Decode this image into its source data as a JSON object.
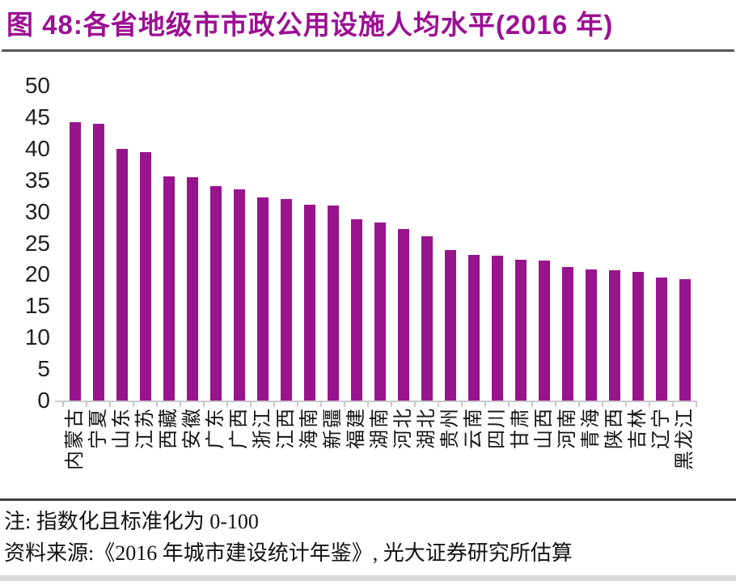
{
  "title": "图 48:各省地级市市政公用设施人均水平(2016 年)",
  "note": "注: 指数化且标准化为 0-100",
  "source": "资料来源:《2016 年城市建设统计年鉴》, 光大证券研究所估算",
  "colors": {
    "title": "#9C0F93",
    "bar": "#97148C",
    "axis": "#C9C9C9",
    "tick_text": "#212121",
    "separator_top": "#595959",
    "separator_bottom": "#3F3F3F",
    "bottom_band": "#D9D9D9"
  },
  "chart_data": {
    "type": "bar",
    "title": "图 48:各省地级市市政公用设施人均水平(2016 年)",
    "categories": [
      "内蒙古",
      "宁夏",
      "山东",
      "江苏",
      "西藏",
      "安徽",
      "广东",
      "广西",
      "浙江",
      "江西",
      "海南",
      "新疆",
      "福建",
      "湖南",
      "河北",
      "湖北",
      "贵州",
      "云南",
      "四川",
      "甘肃",
      "山西",
      "河南",
      "青海",
      "陕西",
      "吉林",
      "辽宁",
      "黑龙江"
    ],
    "values": [
      44.2,
      44.0,
      40.0,
      39.5,
      35.6,
      35.5,
      34.0,
      33.5,
      32.2,
      32.0,
      31.1,
      31.0,
      28.8,
      28.3,
      27.3,
      26.1,
      23.9,
      23.2,
      23.0,
      22.4,
      22.2,
      21.2,
      20.8,
      20.7,
      20.5,
      19.5,
      19.3
    ],
    "xlabel": "",
    "ylabel": "",
    "ylim": [
      0,
      50
    ],
    "y_ticks": [
      50,
      45,
      40,
      35,
      30,
      25,
      20,
      15,
      10,
      5,
      0
    ],
    "grid": false,
    "legend": null,
    "x_label_rotation_deg": -90
  }
}
